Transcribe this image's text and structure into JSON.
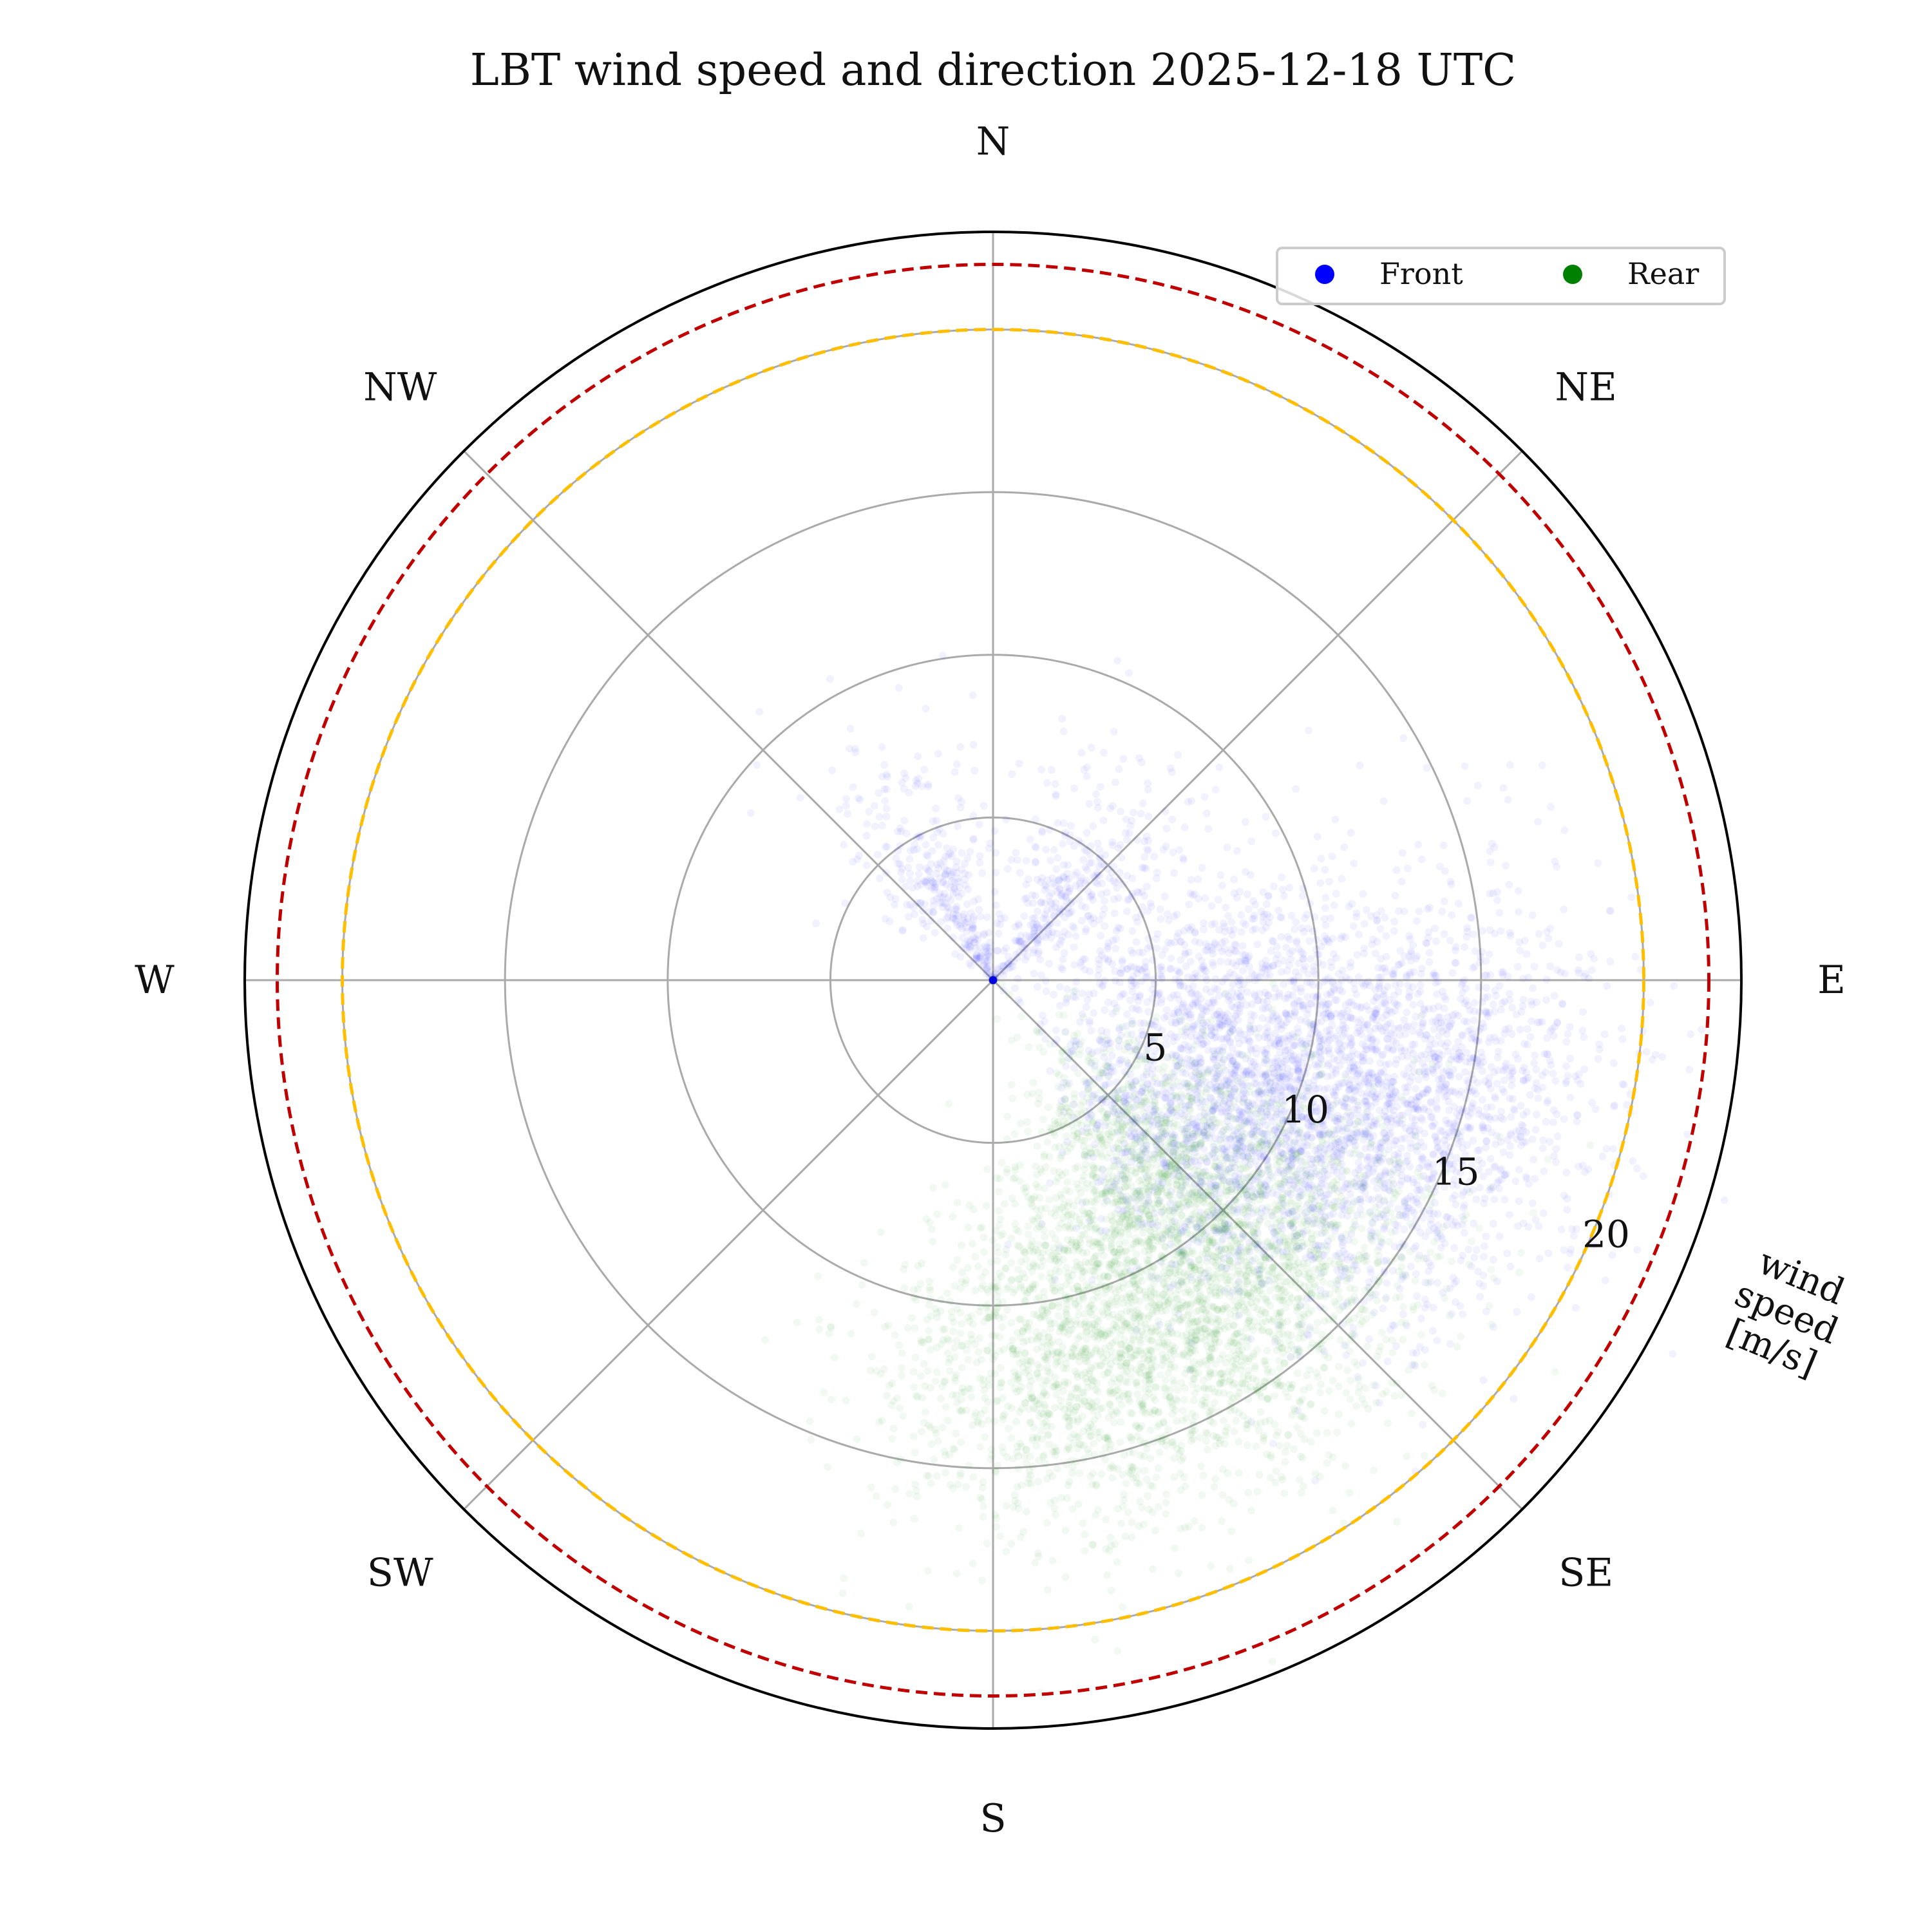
{
  "chart_data": {
    "type": "scatter",
    "projection": "polar",
    "title": "LBT wind speed and direction 2025-12-18 UTC",
    "theta_zero": "N",
    "theta_direction": "clockwise",
    "direction_labels": [
      {
        "label": "N",
        "deg": 0
      },
      {
        "label": "NE",
        "deg": 45
      },
      {
        "label": "E",
        "deg": 90
      },
      {
        "label": "SE",
        "deg": 135
      },
      {
        "label": "S",
        "deg": 180
      },
      {
        "label": "SW",
        "deg": 225
      },
      {
        "label": "W",
        "deg": 270
      },
      {
        "label": "NW",
        "deg": 315
      }
    ],
    "radial_axis": {
      "label_lines": [
        "wind",
        "speed",
        "[m/s]"
      ],
      "ticks": [
        5,
        10,
        15,
        20
      ],
      "tick_labels": [
        "5",
        "10",
        "15",
        "20"
      ],
      "rlim": [
        0,
        23
      ],
      "tick_label_angle_deg": 112.5
    },
    "grid": true,
    "reference_circles": [
      {
        "value": 20,
        "color": "#ffbf00",
        "style": "dashed"
      },
      {
        "value": 22,
        "color": "#c00000",
        "style": "dashed"
      }
    ],
    "legend": {
      "placement": "top-right",
      "ncol": 2
    },
    "series": [
      {
        "name": "Front",
        "color": "#0000ff",
        "point_alpha": 0.05,
        "clusters": [
          {
            "direction_deg": 110,
            "speed": 11.0,
            "weight": 1.0
          },
          {
            "direction_deg": 105,
            "speed": 15.0,
            "weight": 0.8
          },
          {
            "direction_deg": 127,
            "speed": 8.0,
            "weight": 0.6
          },
          {
            "direction_deg": 90,
            "speed": 7.0,
            "weight": 0.5
          },
          {
            "direction_deg": 40,
            "speed": 4.0,
            "weight": 0.3
          },
          {
            "direction_deg": 330,
            "speed": 3.5,
            "weight": 0.3
          }
        ]
      },
      {
        "name": "Rear",
        "color": "#008000",
        "point_alpha": 0.05,
        "clusters": [
          {
            "direction_deg": 138,
            "speed": 12.5,
            "weight": 1.0
          },
          {
            "direction_deg": 170,
            "speed": 12.0,
            "weight": 0.7
          },
          {
            "direction_deg": 150,
            "speed": 9.0,
            "weight": 0.7
          },
          {
            "direction_deg": 132,
            "speed": 7.5,
            "weight": 0.5
          },
          {
            "direction_deg": 160,
            "speed": 14.5,
            "weight": 0.4
          }
        ]
      }
    ]
  }
}
